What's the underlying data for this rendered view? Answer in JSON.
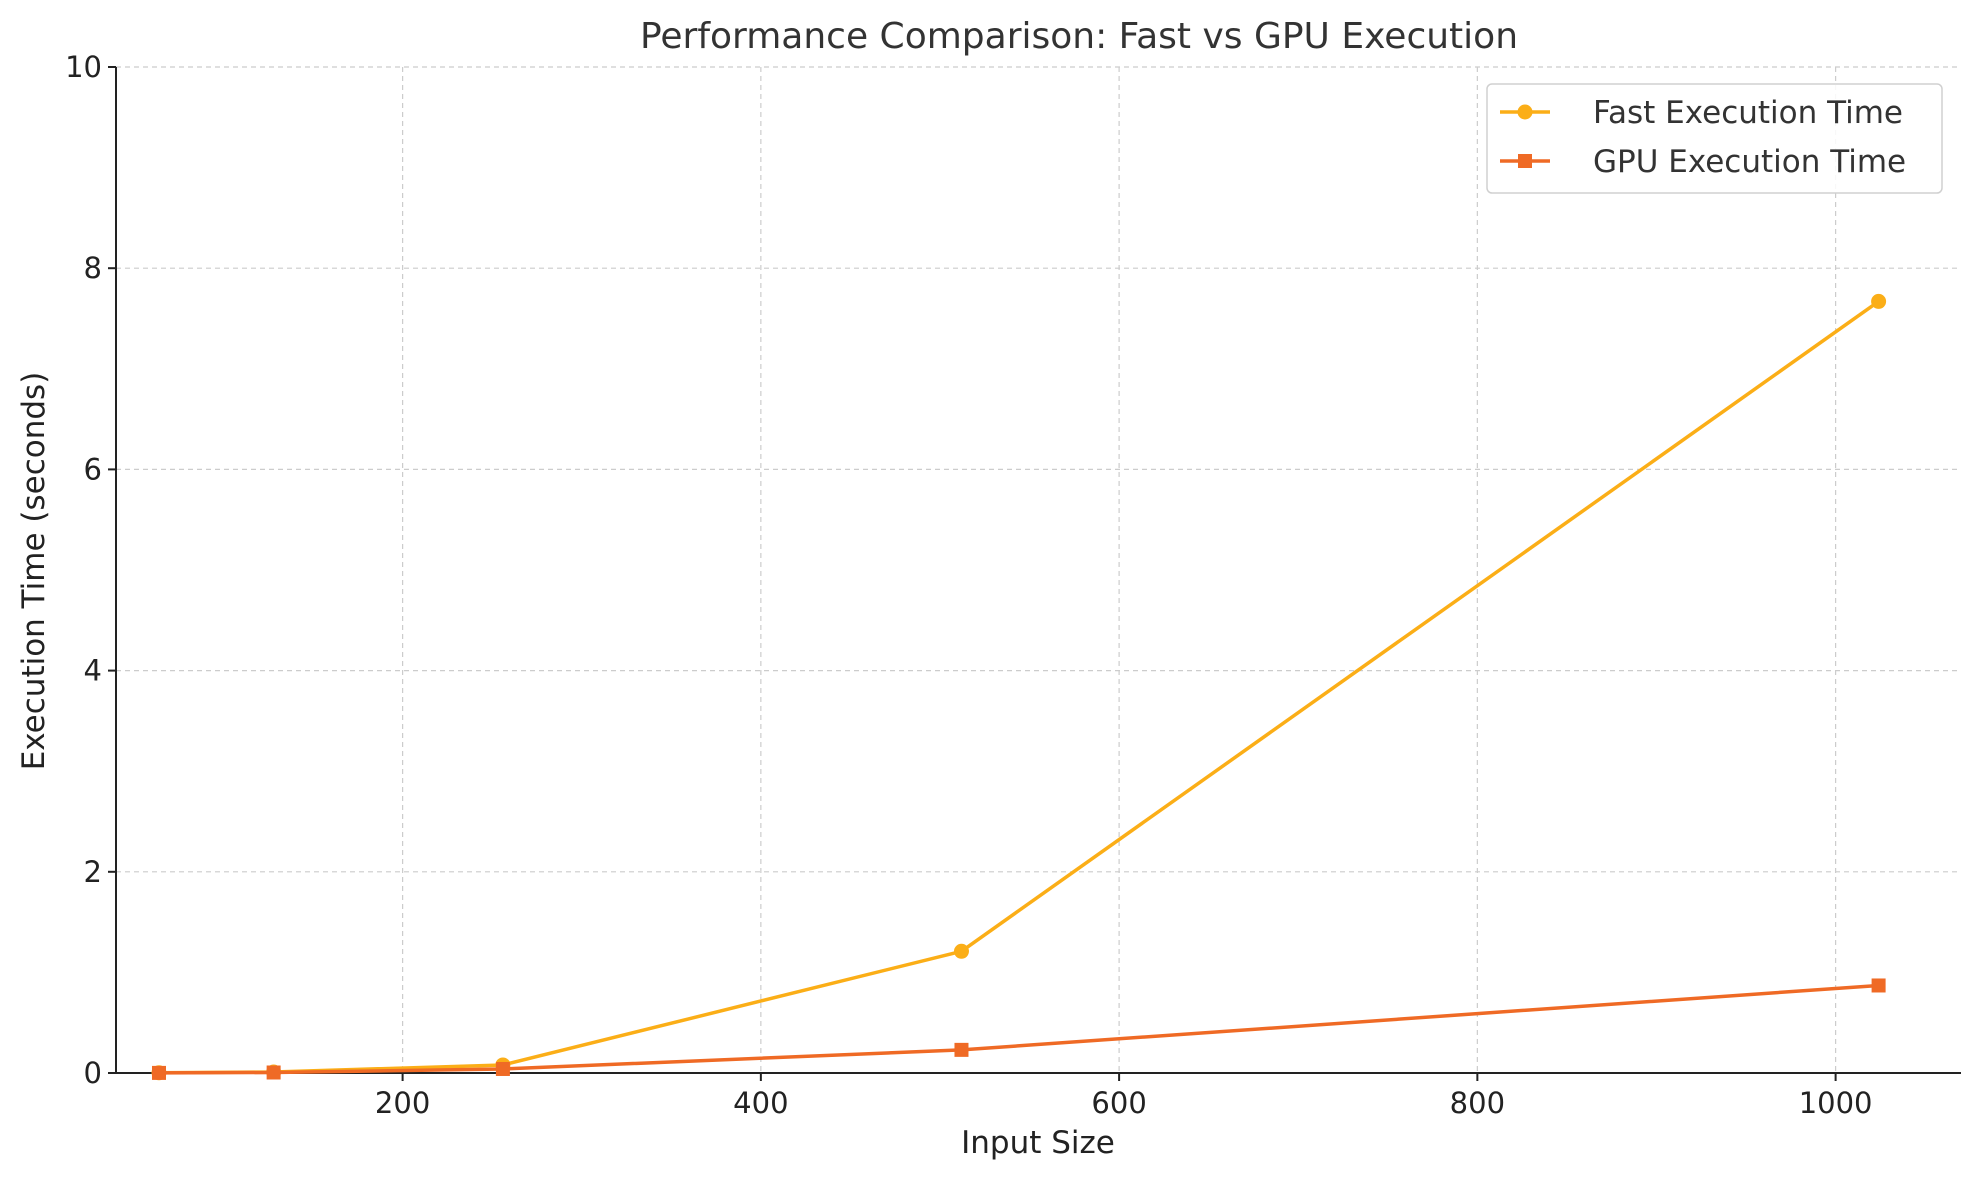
{
  "chart_data": {
    "type": "line",
    "title": "Performance Comparison: Fast vs GPU Execution",
    "xlabel": "Input Size",
    "ylabel": "Execution Time (seconds)",
    "xlim": [
      40,
      1070
    ],
    "ylim": [
      0,
      10
    ],
    "xticks": [
      200,
      400,
      600,
      800,
      1000
    ],
    "yticks": [
      0,
      2,
      4,
      6,
      8,
      10
    ],
    "x": [
      64,
      128,
      256,
      512,
      1024
    ],
    "grid": true,
    "legend_position": "top-right",
    "series": [
      {
        "name": "Fast Execution Time",
        "values": [
          0.002,
          0.01,
          0.08,
          1.21,
          7.67
        ],
        "color": "#FBAE17",
        "marker": "circle"
      },
      {
        "name": "GPU Execution Time",
        "values": [
          0.001,
          0.005,
          0.04,
          0.23,
          0.87
        ],
        "color": "#EF6A25",
        "marker": "square"
      }
    ]
  }
}
